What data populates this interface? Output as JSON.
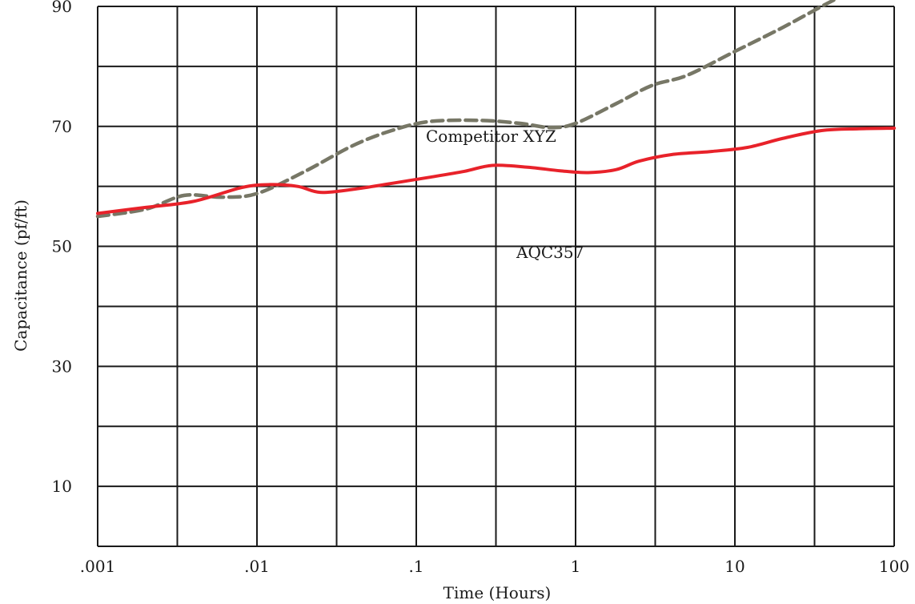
{
  "chart_data": {
    "type": "line",
    "title": "",
    "xlabel": "Time (Hours)",
    "ylabel": "Capacitance (pf/ft)",
    "x_scale": "log",
    "xlim": [
      0.001,
      100
    ],
    "ylim": [
      0,
      90
    ],
    "x_tick_values": [
      0.001,
      0.01,
      0.1,
      1,
      10,
      100
    ],
    "x_tick_labels": [
      ".001",
      ".01",
      ".1",
      "1",
      "10",
      "100"
    ],
    "y_tick_values": [
      10,
      30,
      50,
      70,
      90
    ],
    "y_tick_labels": [
      "10",
      "30",
      "50",
      "70",
      "90"
    ],
    "y_grid_step": 10,
    "grid": true,
    "legend": "none",
    "series": [
      {
        "name": "Competitor XYZ",
        "color": "#777766",
        "dash": "dashed",
        "x": [
          0.001,
          0.002,
          0.0035,
          0.006,
          0.01,
          0.02,
          0.04,
          0.07,
          0.12,
          0.25,
          0.45,
          0.7,
          1,
          1.8,
          3,
          5,
          10,
          20,
          40,
          70,
          100
        ],
        "y": [
          55,
          56.2,
          58.5,
          58.2,
          58.8,
          62.5,
          66.8,
          69.3,
          70.8,
          71,
          70.5,
          69.8,
          70.5,
          73.8,
          76.8,
          78.5,
          82.5,
          86.5,
          90.8,
          93.8,
          94.8
        ]
      },
      {
        "name": "AQC357",
        "color": "#e8222a",
        "dash": "solid",
        "x": [
          0.001,
          0.002,
          0.004,
          0.008,
          0.012,
          0.018,
          0.025,
          0.04,
          0.07,
          0.12,
          0.2,
          0.3,
          0.5,
          0.8,
          1.2,
          1.8,
          2.5,
          4,
          7,
          12,
          20,
          35,
          60,
          100
        ],
        "y": [
          55.5,
          56.5,
          57.5,
          59.8,
          60.3,
          60,
          59,
          59.5,
          60.5,
          61.5,
          62.5,
          63.5,
          63.2,
          62.6,
          62.3,
          62.8,
          64.2,
          65.3,
          65.8,
          66.5,
          68,
          69.3,
          69.6,
          69.7
        ]
      }
    ],
    "annotations": [
      {
        "text": "Competitor XYZ",
        "series": "Competitor XYZ"
      },
      {
        "text": "AQC357",
        "series": "AQC357"
      }
    ]
  }
}
